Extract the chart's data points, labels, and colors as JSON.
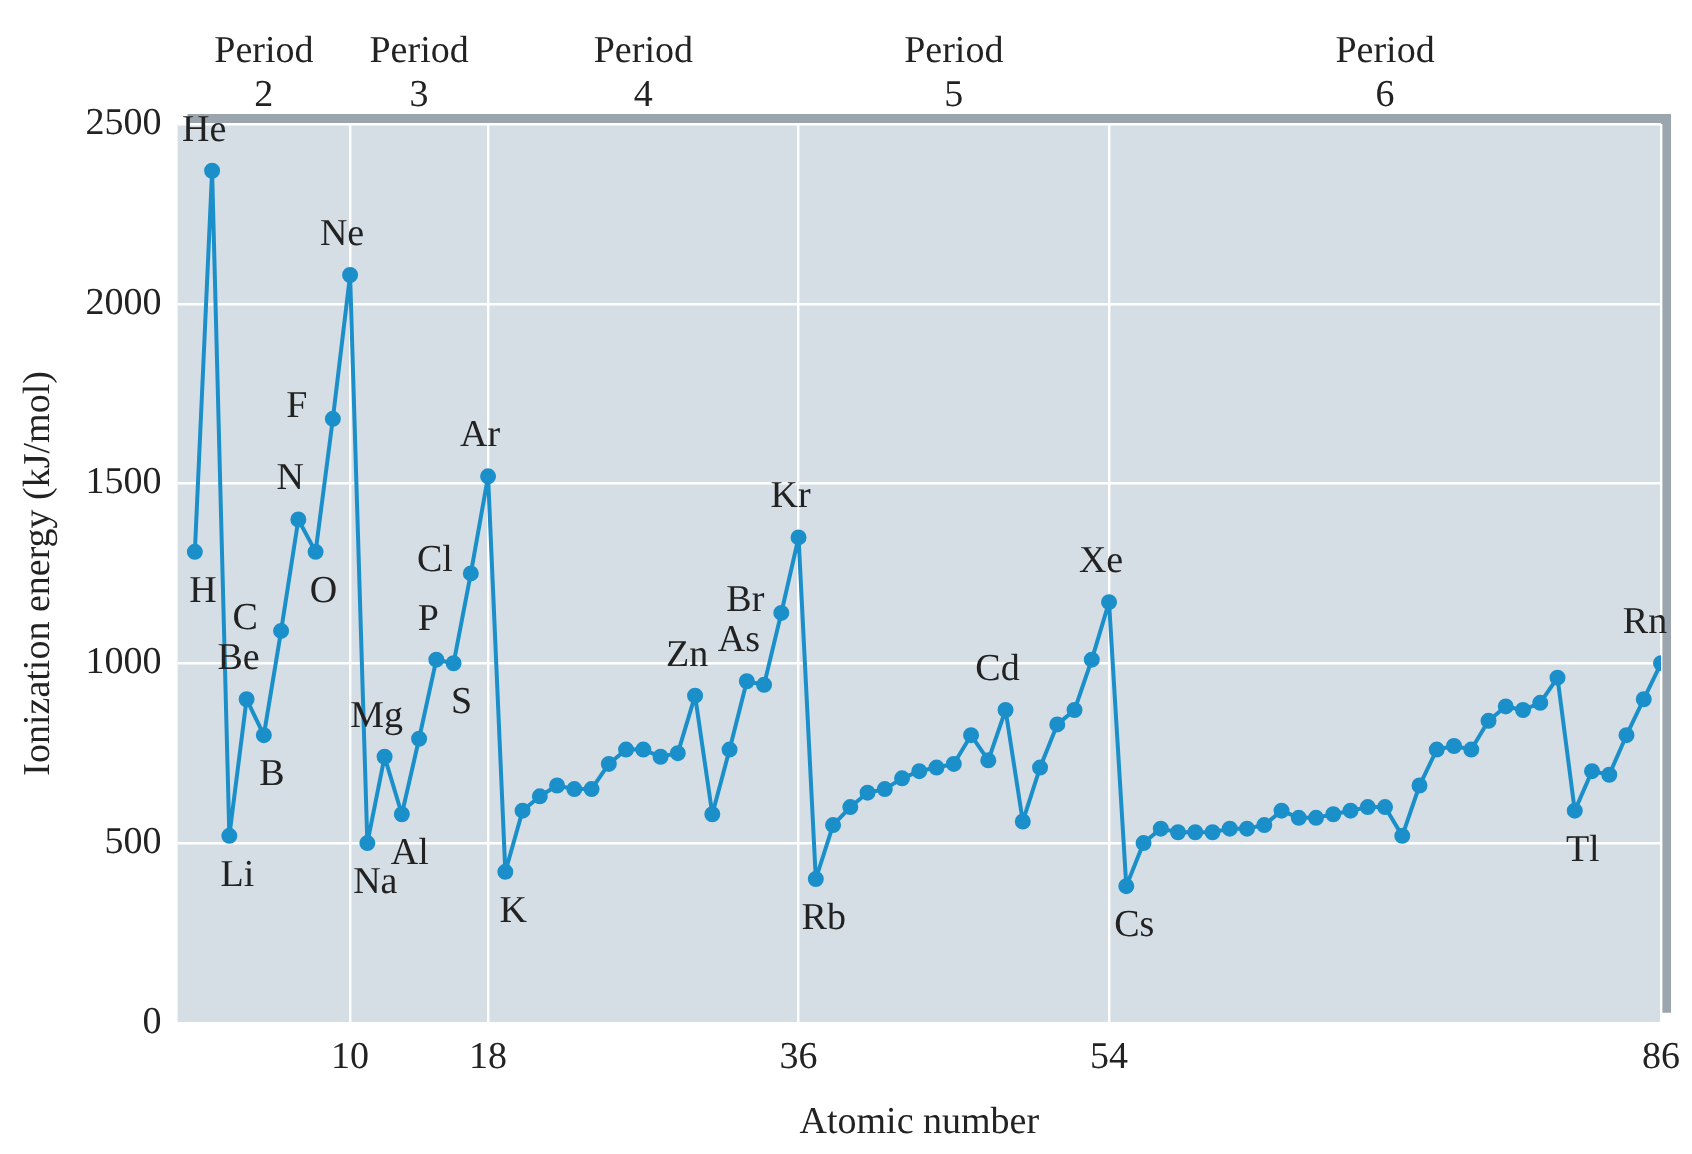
{
  "chart_data": {
    "type": "line",
    "xlabel": "Atomic number",
    "ylabel": "Ionization energy (kJ/mol)",
    "x": [
      1,
      2,
      3,
      4,
      5,
      6,
      7,
      8,
      9,
      10,
      11,
      12,
      13,
      14,
      15,
      16,
      17,
      18,
      19,
      20,
      21,
      22,
      23,
      24,
      25,
      26,
      27,
      28,
      29,
      30,
      31,
      32,
      33,
      34,
      35,
      36,
      37,
      38,
      39,
      40,
      41,
      42,
      43,
      44,
      45,
      46,
      47,
      48,
      49,
      50,
      51,
      52,
      53,
      54,
      55,
      56,
      57,
      58,
      59,
      60,
      61,
      62,
      63,
      64,
      65,
      66,
      67,
      68,
      69,
      70,
      71,
      72,
      73,
      74,
      75,
      76,
      77,
      78,
      79,
      80,
      81,
      82,
      83,
      84,
      85,
      86
    ],
    "series": [
      {
        "color": "#1a8fc9",
        "values": [
          1310,
          2370,
          520,
          900,
          800,
          1090,
          1400,
          1310,
          1680,
          2080,
          500,
          740,
          580,
          790,
          1010,
          1000,
          1250,
          1520,
          420,
          590,
          630,
          660,
          650,
          650,
          720,
          760,
          760,
          740,
          750,
          910,
          580,
          760,
          950,
          940,
          1140,
          1350,
          400,
          550,
          600,
          640,
          650,
          680,
          700,
          710,
          720,
          800,
          730,
          870,
          560,
          710,
          830,
          870,
          1010,
          1170,
          380,
          500,
          540,
          530,
          530,
          530,
          540,
          540,
          550,
          590,
          570,
          570,
          580,
          590,
          600,
          600,
          520,
          660,
          760,
          770,
          760,
          840,
          880,
          870,
          890,
          960,
          590,
          700,
          690,
          800,
          900,
          1000
        ]
      }
    ],
    "xlim": [
      0,
      86
    ],
    "xticks": [
      10,
      18,
      36,
      54,
      86
    ],
    "ylim": [
      0,
      2500
    ],
    "yticks": [
      0,
      500,
      1000,
      1500,
      2000,
      2500
    ],
    "grid": true,
    "marker": "circle",
    "line_style": "solid",
    "annotations": [
      "Period\n2",
      "Period\n3",
      "Period\n4",
      "Period\n5",
      "Period\n6",
      {
        "text": "H",
        "x": 1,
        "y": 1310
      },
      {
        "text": "He",
        "x": 2,
        "y": 2370
      },
      {
        "text": "Li",
        "x": 3,
        "y": 520
      },
      {
        "text": "Be",
        "x": 4,
        "y": 900
      },
      {
        "text": "B",
        "x": 5,
        "y": 800
      },
      {
        "text": "C",
        "x": 6,
        "y": 1090
      },
      {
        "text": "N",
        "x": 7,
        "y": 1400
      },
      {
        "text": "O",
        "x": 8,
        "y": 1310
      },
      {
        "text": "F",
        "x": 9,
        "y": 1680
      },
      {
        "text": "Ne",
        "x": 10,
        "y": 2080
      },
      {
        "text": "Na",
        "x": 11,
        "y": 500
      },
      {
        "text": "Mg",
        "x": 12,
        "y": 740
      },
      {
        "text": "Al",
        "x": 13,
        "y": 580
      },
      {
        "text": "P",
        "x": 15,
        "y": 1010
      },
      {
        "text": "S",
        "x": 16,
        "y": 1000
      },
      {
        "text": "Cl",
        "x": 17,
        "y": 1250
      },
      {
        "text": "Ar",
        "x": 18,
        "y": 1520
      },
      {
        "text": "K",
        "x": 19,
        "y": 420
      },
      {
        "text": "Zn",
        "x": 30,
        "y": 910
      },
      {
        "text": "As",
        "x": 33,
        "y": 950
      },
      {
        "text": "Br",
        "x": 35,
        "y": 1140
      },
      {
        "text": "Kr",
        "x": 36,
        "y": 1350
      },
      {
        "text": "Rb",
        "x": 37,
        "y": 400
      },
      {
        "text": "Cd",
        "x": 48,
        "y": 870
      },
      {
        "text": "Xe",
        "x": 54,
        "y": 1170
      },
      {
        "text": "Cs",
        "x": 55,
        "y": 380
      },
      {
        "text": "Tl",
        "x": 81,
        "y": 590
      },
      {
        "text": "Rn",
        "x": 86,
        "y": 1000
      }
    ]
  }
}
